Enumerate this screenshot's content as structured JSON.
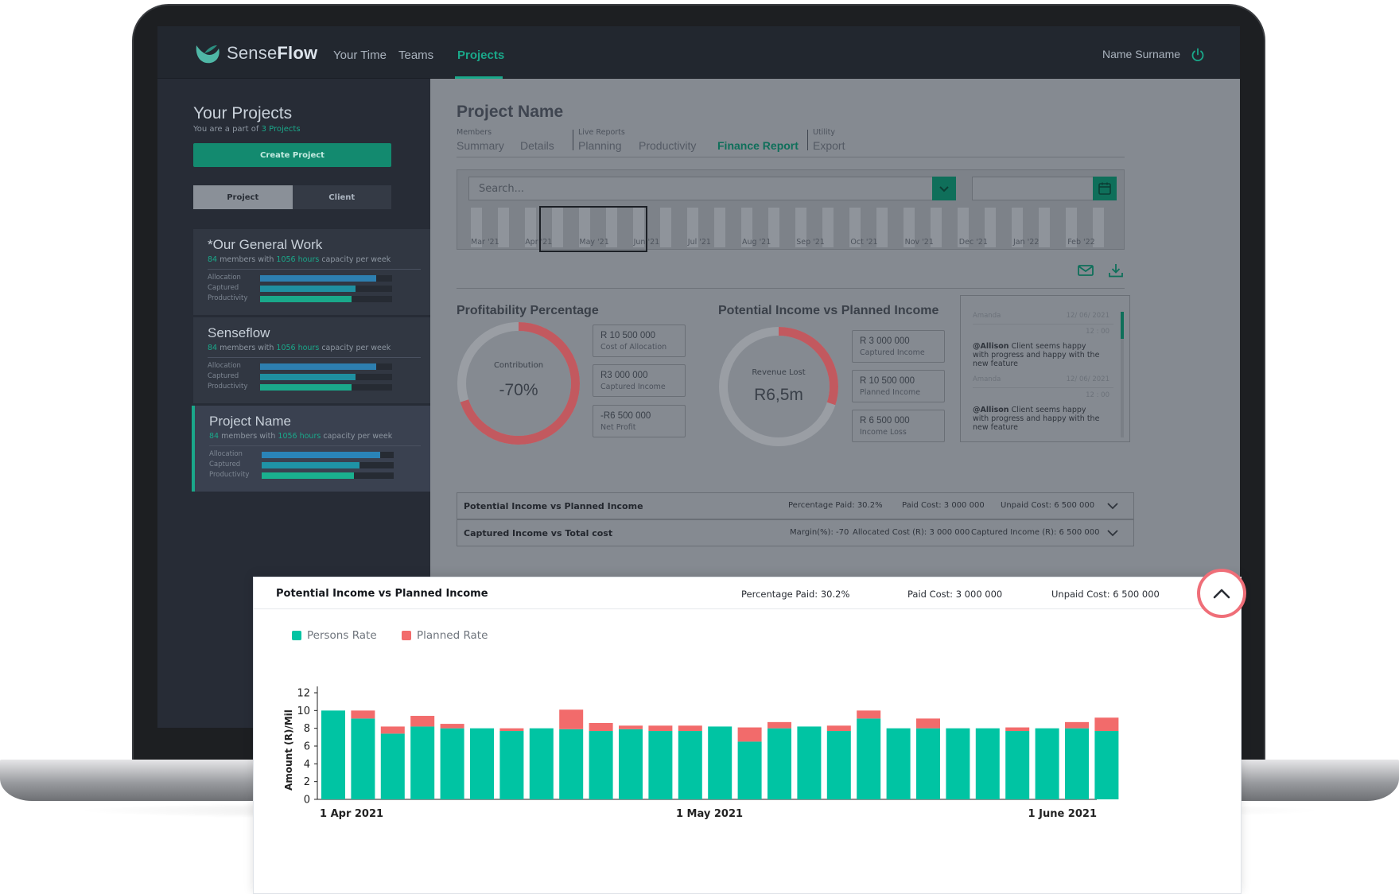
{
  "app": {
    "logo_light": "Sense",
    "logo_bold": "Flow",
    "nav": [
      "Your Time",
      "Teams",
      "Projects"
    ],
    "nav_active": "Projects",
    "user_name": "Name Surname",
    "accent": "#1aa88a"
  },
  "sidebar": {
    "title": "Your Projects",
    "subtitle_prefix": "You are a part of ",
    "subtitle_count": "3 Projects",
    "create_button": "Create Project",
    "segments": [
      "Project",
      "Client"
    ],
    "labels": {
      "allocation": "Allocation",
      "captured": "Captured",
      "productivity": "Productivity"
    },
    "projects": [
      {
        "name": "*Our General Work",
        "members": "84",
        "members_suffix": " members with ",
        "hours": "1056 hours",
        "hours_suffix": " capacity per week",
        "allocation": 0.88,
        "captured": 0.72,
        "productivity": 0.69
      },
      {
        "name": "Senseflow",
        "members": "84",
        "members_suffix": " members with ",
        "hours": "1056 hours",
        "hours_suffix": " capacity per week",
        "allocation": 0.88,
        "captured": 0.72,
        "productivity": 0.69
      },
      {
        "name": "Project Name",
        "members": "84",
        "members_suffix": " members with ",
        "hours": "1056 hours",
        "hours_suffix": " capacity per week",
        "allocation": 0.9,
        "captured": 0.74,
        "productivity": 0.7
      }
    ]
  },
  "main": {
    "title": "Project Name",
    "tab_groups": [
      "Members",
      "Live Reports",
      "Utility"
    ],
    "tabs": [
      "Summary",
      "Details",
      "Planning",
      "Productivity",
      "Finance Report",
      "Export"
    ],
    "active_tab": "Finance Report",
    "search_placeholder": "Search...",
    "months": [
      "Mar '21",
      "Apr '21",
      "May '21",
      "Jun '21",
      "Jul '21",
      "Aug '21",
      "Sep '21",
      "Oct '21",
      "Nov '21",
      "Dec '21",
      "Jan '22",
      "Feb '22"
    ],
    "profitability": {
      "title": "Profitability Percentage",
      "center_label": "Contribution",
      "center_value": "-70%",
      "fill_fraction": 0.7,
      "stats": [
        {
          "value": "R 10 500 000",
          "caption": "Cost of Allocation"
        },
        {
          "value": "R3 000 000",
          "caption": "Captured Income"
        },
        {
          "value": "-R6 500 000",
          "caption": "Net Profit"
        }
      ]
    },
    "potential": {
      "title": "Potential Income vs Planned Income",
      "center_label": "Revenue Lost",
      "center_value": "R6,5m",
      "fill_fraction": 0.3,
      "stats": [
        {
          "value": "R 3 000 000",
          "caption": "Captured Income"
        },
        {
          "value": "R 10 500 000",
          "caption": "Planned Income"
        },
        {
          "value": "R 6 500 000",
          "caption": "Income Loss"
        }
      ]
    },
    "comments": [
      {
        "author": "Amanda",
        "date": "12/ 06/ 2021",
        "time": "12 : 00",
        "mention": "@Allison",
        "text": " Client seems happy with progress and happy with the new feature"
      },
      {
        "author": "Amanda",
        "date": "12/ 06/ 2021",
        "time": "12 : 00",
        "mention": "@Allison",
        "text": " Client seems happy with progress and happy with the new feature"
      }
    ],
    "accordion": [
      {
        "title": "Potential Income vs Planned Income",
        "m1": "Percentage Paid: 30.2%",
        "m2": "Paid Cost: 3 000 000",
        "m3": "Unpaid Cost: 6 500 000"
      },
      {
        "title": "Captured Income vs Total cost",
        "m1": "Margin(%): -70",
        "m2": "Allocated Cost (R): 3 000 000",
        "m3": "Captured Income (R): 6 500 000"
      }
    ]
  },
  "popup": {
    "title": "Potential Income vs Planned Income",
    "m1": "Percentage Paid: 30.2%",
    "m2": "Paid Cost: 3 000 000",
    "m3": "Unpaid Cost: 6 500 000"
  },
  "chart_data": {
    "type": "bar",
    "stacked": true,
    "ylabel": "Amount (R)/Mil",
    "ylim": [
      0,
      12
    ],
    "yticks": [
      0,
      2,
      4,
      6,
      8,
      10,
      12
    ],
    "x_tick_labels": [
      "1 Apr 2021",
      "1 May 2021",
      "1 June 2021"
    ],
    "legend": [
      "Persons Rate",
      "Planned Rate"
    ],
    "colors": {
      "persons": "#00c4a3",
      "planned": "#f26b6b"
    },
    "series": [
      {
        "name": "Persons Rate",
        "values": [
          10.0,
          9.1,
          7.4,
          8.2,
          8.0,
          8.0,
          7.7,
          8.0,
          7.9,
          7.7,
          7.9,
          7.7,
          7.7,
          8.2,
          6.5,
          8.0,
          8.2,
          7.7,
          9.1,
          8.0,
          8.0,
          8.0,
          8.0,
          7.7,
          8.0,
          8.0,
          7.7
        ]
      },
      {
        "name": "Planned Rate",
        "values": [
          0.0,
          0.9,
          0.8,
          1.2,
          0.5,
          0.0,
          0.3,
          0.0,
          2.2,
          0.9,
          0.4,
          0.6,
          0.6,
          0.0,
          1.6,
          0.7,
          0.0,
          0.6,
          0.9,
          0.0,
          1.1,
          0.0,
          0.0,
          0.4,
          0.0,
          0.7,
          1.5
        ]
      }
    ]
  }
}
